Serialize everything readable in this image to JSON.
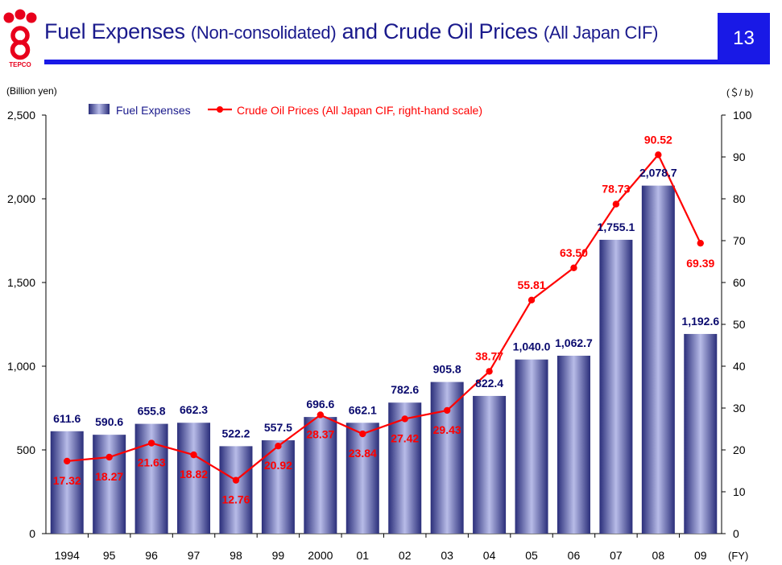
{
  "header": {
    "logo_text": "TEPCO",
    "title_main_1": "Fuel Expenses ",
    "title_sub_1": "(Non-consolidated)",
    "title_main_2": " and Crude Oil Prices ",
    "title_sub_2": "(All Japan CIF)",
    "page_number": "13"
  },
  "colors": {
    "brand_red": "#e8001c",
    "title_blue": "#1a1a8c",
    "accent_blue": "#1919e6",
    "bar_dark": "#2a2e7a",
    "bar_light": "#b8bce8",
    "line_red": "#ff0000",
    "bar_label": "#0a0a6e"
  },
  "chart_data": {
    "type": "bar+line",
    "left_unit": "(Billion yen)",
    "right_unit": "(＄/ b)",
    "x_suffix": "(FY)",
    "categories": [
      "1994",
      "95",
      "96",
      "97",
      "98",
      "99",
      "2000",
      "01",
      "02",
      "03",
      "04",
      "05",
      "06",
      "07",
      "08",
      "09"
    ],
    "y_left": {
      "min": 0,
      "max": 2500,
      "ticks": [
        "0",
        "500",
        "1,000",
        "1,500",
        "2,000",
        "2,500"
      ]
    },
    "y_right": {
      "min": 0,
      "max": 100,
      "ticks": [
        "0",
        "10",
        "20",
        "30",
        "40",
        "50",
        "60",
        "70",
        "80",
        "90",
        "100"
      ]
    },
    "legend_position": "top-left",
    "grid": false,
    "series": [
      {
        "name": "Fuel Expenses",
        "type": "bar",
        "axis": "left",
        "values": [
          611.6,
          590.6,
          655.8,
          662.3,
          522.2,
          557.5,
          696.6,
          662.1,
          782.6,
          905.8,
          822.4,
          1040.0,
          1062.7,
          1755.1,
          2078.7,
          1192.6
        ],
        "labels": [
          "611.6",
          "590.6",
          "655.8",
          "662.3",
          "522.2",
          "557.5",
          "696.6",
          "662.1",
          "782.6",
          "905.8",
          "822.4",
          "1,040.0",
          "1,062.7",
          "1,755.1",
          "2,078.7",
          "1,192.6"
        ]
      },
      {
        "name": "Crude Oil Prices (All Japan CIF, right-hand scale)",
        "type": "line",
        "axis": "right",
        "values": [
          17.32,
          18.27,
          21.63,
          18.82,
          12.76,
          20.92,
          28.37,
          23.84,
          27.42,
          29.43,
          38.77,
          55.81,
          63.5,
          78.73,
          90.52,
          69.39
        ],
        "labels": [
          "17.32",
          "18.27",
          "21.63",
          "18.82",
          "12.76",
          "20.92",
          "28.37",
          "23.84",
          "27.42",
          "29.43",
          "38.77",
          "55.81",
          "63.50",
          "78.73",
          "90.52",
          "69.39"
        ]
      }
    ]
  }
}
